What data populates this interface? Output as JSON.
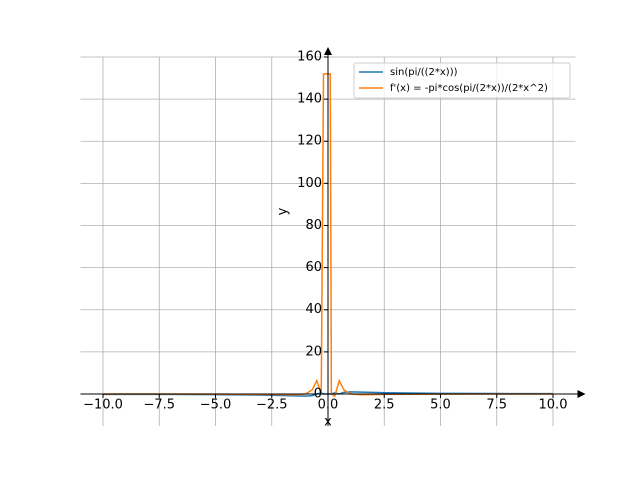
{
  "chart_data": {
    "type": "line",
    "xlabel": "x",
    "ylabel": "y",
    "x": [
      -10,
      -7.5,
      -5,
      -2.5,
      -1.5,
      -1,
      -0.7,
      -0.5,
      -0.3,
      -0.2,
      -0.1,
      0,
      0.1,
      0.15,
      0.3,
      0.5,
      0.7,
      1,
      1.5,
      2.5,
      5,
      7.5,
      10
    ],
    "series": [
      {
        "name": "sin(pi/((2*x)))",
        "color": "#1f77b4",
        "values": [
          -0.16,
          -0.21,
          -0.31,
          -0.59,
          -0.87,
          -1,
          -0.78,
          0,
          0.5,
          0,
          0,
          0,
          0,
          0,
          0.5,
          0,
          0.78,
          1,
          0.87,
          0.59,
          0.31,
          0.21,
          0.16
        ]
      },
      {
        "name": "f'(x) = -pi*cos(pi/(2*x))/(2*x^2)",
        "color": "#ff7f0e",
        "values": [
          -0.02,
          -0.03,
          -0.06,
          -0.2,
          -0.35,
          0,
          2,
          6.3,
          0,
          152,
          152,
          152,
          152,
          0,
          -1,
          6.3,
          2,
          0,
          -0.35,
          -0.2,
          -0.06,
          -0.03,
          -0.02
        ]
      }
    ],
    "xlim": [
      -11,
      11
    ],
    "ylim": [
      -15.2,
      160
    ],
    "xticks": [
      {
        "value": -10,
        "label": "−10.0"
      },
      {
        "value": -7.5,
        "label": "−7.5"
      },
      {
        "value": -5,
        "label": "−5.0"
      },
      {
        "value": -2.5,
        "label": "−2.5"
      },
      {
        "value": 0,
        "label": "0.0"
      },
      2.5,
      {
        "value": 5,
        "label": "5.0"
      },
      7.5,
      {
        "value": 10,
        "label": "10.0"
      }
    ],
    "yticks": [
      0,
      20,
      40,
      60,
      80,
      100,
      120,
      140,
      160
    ],
    "grid": true,
    "legend": "upper right"
  }
}
